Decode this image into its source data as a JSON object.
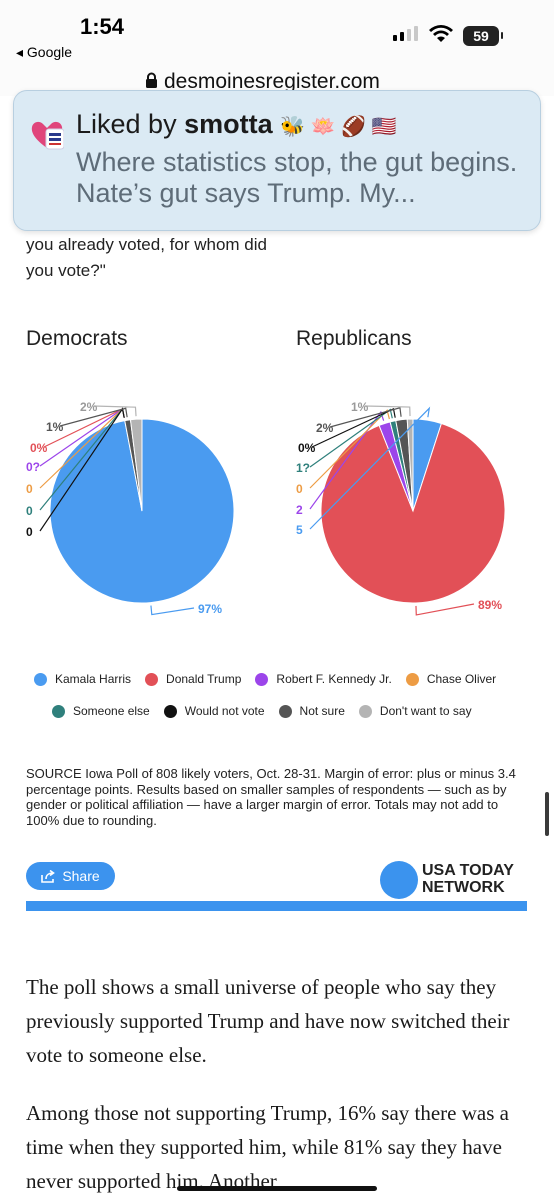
{
  "status_bar": {
    "time": "1:54",
    "back_label": "◂ Google",
    "battery": "59"
  },
  "browser": {
    "url": "desmoinesregister.com"
  },
  "notification": {
    "liked_prefix": "Liked by ",
    "liked_user": "smotta",
    "emojis": "🐝 🪷 🏈 🇺🇸",
    "body": "Where statistics stop, the gut begins. Nate’s gut says Trump. My..."
  },
  "article": {
    "question_fragment": "you already voted, for whom did you vote?\"",
    "source_note": "SOURCE Iowa Poll of 808 likely voters, Oct. 28-31. Margin of error: plus or minus 3.4 percentage points. Results based on smaller samples of respondents — such as by gender or political affiliation — have a larger margin of error. Totals may not add to 100% due to rounding.",
    "share_label": "Share",
    "network_line1": "USA TODAY",
    "network_line2": "NETWORK",
    "paragraph1": "The poll shows a small universe of people who say they previously supported Trump and have now switched their vote to someone else.",
    "paragraph2": "Among those not supporting Trump, 16% say there was a time when they supported him, while 81% say they have never supported him. Another"
  },
  "chart_data": [
    {
      "type": "pie",
      "title": "Democrats",
      "categories": [
        "Kamala Harris",
        "Donald Trump",
        "Robert F. Kennedy Jr.",
        "Chase Oliver",
        "Someone else",
        "Would not vote",
        "Not sure",
        "Don't want to say"
      ],
      "values": [
        97,
        0,
        0,
        0,
        0,
        0,
        1,
        2
      ],
      "labels": [
        "97%",
        "0%",
        "0?",
        "0",
        "0",
        "0",
        "1%",
        "2%"
      ]
    },
    {
      "type": "pie",
      "title": "Republicans",
      "categories": [
        "Kamala Harris",
        "Donald Trump",
        "Robert F. Kennedy Jr.",
        "Chase Oliver",
        "Someone else",
        "Would not vote",
        "Not sure",
        "Don't want to say"
      ],
      "values": [
        5,
        89,
        2,
        0,
        1,
        0,
        2,
        1
      ],
      "labels": [
        "5",
        "89%",
        "2",
        "0",
        "1?",
        "0%",
        "2%",
        "1%"
      ]
    }
  ],
  "legend": {
    "colors": {
      "Kamala Harris": "#4a9bf0",
      "Donald Trump": "#e25057",
      "Robert F. Kennedy Jr.": "#9c45ea",
      "Chase Oliver": "#ed9c44",
      "Someone else": "#2f807c",
      "Would not vote": "#111111",
      "Not sure": "#555555",
      "Don't want to say": "#b4b4b4"
    },
    "row1": [
      "Kamala Harris",
      "Donald Trump",
      "Robert F. Kennedy Jr.",
      "Chase Oliver"
    ],
    "row2": [
      "Someone else",
      "Would not vote",
      "Not sure",
      "Don't want to say"
    ]
  }
}
